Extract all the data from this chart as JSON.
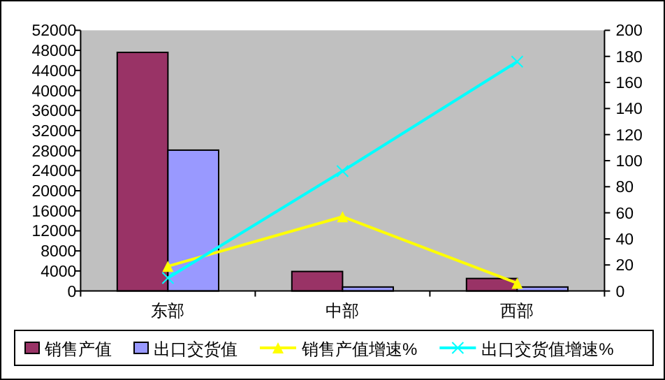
{
  "chart_data": {
    "type": "bar",
    "categories": [
      "东部",
      "中部",
      "西部"
    ],
    "series": [
      {
        "name": "销售产值",
        "color": "#993366",
        "values": [
          47600,
          3900,
          2500
        ]
      },
      {
        "name": "出口交货值",
        "color": "#9999ff",
        "values": [
          28100,
          800,
          800
        ]
      },
      {
        "name": "销售产值增速%",
        "type": "line",
        "axis": "y2",
        "color": "#ffff00",
        "marker": "triangle",
        "values": [
          19,
          57,
          6
        ]
      },
      {
        "name": "出口交货值增速%",
        "type": "line",
        "axis": "y2",
        "color": "#00ffff",
        "marker": "cross",
        "values": [
          10,
          92,
          176
        ]
      }
    ],
    "ylim": [
      0,
      52000
    ],
    "yticks": [
      0,
      4000,
      8000,
      12000,
      16000,
      20000,
      24000,
      28000,
      32000,
      36000,
      40000,
      44000,
      48000,
      52000
    ],
    "y2lim": [
      0,
      200
    ],
    "y2ticks": [
      0,
      20,
      40,
      60,
      80,
      100,
      120,
      140,
      160,
      180,
      200
    ],
    "grid": false,
    "legend": "bottom"
  }
}
